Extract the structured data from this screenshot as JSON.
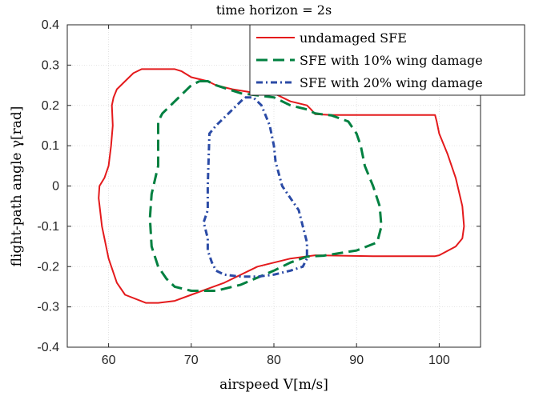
{
  "chart_data": {
    "type": "line",
    "title": "time horizon = 2s",
    "xlabel": "airspeed V[m/s]",
    "ylabel": "flight-path angle γ[rad]",
    "xlim": [
      55,
      105
    ],
    "ylim": [
      -0.4,
      0.4
    ],
    "xticks": [
      "60",
      "70",
      "80",
      "90",
      "100"
    ],
    "yticks": [
      "0.4",
      "0.3",
      "0.2",
      "0.1",
      "0",
      "-0.1",
      "-0.2",
      "-0.3",
      "-0.4"
    ],
    "grid": true,
    "legend_position": "top-right",
    "series": [
      {
        "name": "undamaged SFE",
        "color": "#e41a1c",
        "style": "solid",
        "x": [
          64.5,
          68,
          68.8,
          70,
          72,
          73,
          75,
          78,
          80,
          81,
          82,
          83,
          84,
          84.5,
          85,
          87,
          95,
          99.5,
          99.7,
          100,
          101,
          102,
          102.8,
          103,
          102.8,
          102,
          100,
          99.5,
          96,
          92,
          85,
          82,
          78,
          74,
          70,
          68,
          66,
          64.5,
          62,
          61,
          60,
          59.2,
          58.8,
          58.9,
          59.5,
          60,
          60.3,
          60.5,
          60.4,
          60.6,
          61,
          62,
          63,
          64,
          64.5
        ],
        "y": [
          0.29,
          0.29,
          0.285,
          0.27,
          0.26,
          0.25,
          0.24,
          0.23,
          0.23,
          0.22,
          0.21,
          0.205,
          0.2,
          0.19,
          0.178,
          0.176,
          0.176,
          0.176,
          0.16,
          0.13,
          0.08,
          0.02,
          -0.05,
          -0.1,
          -0.13,
          -0.15,
          -0.172,
          -0.174,
          -0.174,
          -0.174,
          -0.172,
          -0.18,
          -0.2,
          -0.24,
          -0.27,
          -0.285,
          -0.29,
          -0.29,
          -0.27,
          -0.24,
          -0.18,
          -0.1,
          -0.03,
          0.0,
          0.02,
          0.05,
          0.1,
          0.15,
          0.2,
          0.22,
          0.24,
          0.26,
          0.28,
          0.29,
          0.29
        ]
      },
      {
        "name": "SFE with 10% wing damage",
        "color": "#008040",
        "style": "dashed",
        "x": [
          71,
          72,
          73,
          76,
          80,
          82,
          84,
          85,
          87,
          89,
          90,
          90.5,
          91,
          92,
          92.8,
          93,
          92.5,
          90,
          86,
          84,
          82,
          80,
          76,
          73,
          70,
          68,
          67,
          66,
          65.2,
          65,
          65.2,
          66,
          66,
          66,
          66.5,
          68,
          70,
          71
        ],
        "y": [
          0.26,
          0.26,
          0.25,
          0.23,
          0.22,
          0.2,
          0.19,
          0.18,
          0.175,
          0.16,
          0.13,
          0.1,
          0.05,
          0.0,
          -0.05,
          -0.1,
          -0.14,
          -0.16,
          -0.173,
          -0.175,
          -0.19,
          -0.21,
          -0.245,
          -0.26,
          -0.26,
          -0.25,
          -0.23,
          -0.2,
          -0.15,
          -0.08,
          -0.02,
          0.05,
          0.1,
          0.16,
          0.18,
          0.21,
          0.25,
          0.26
        ]
      },
      {
        "name": "SFE with 20% wing damage",
        "color": "#2b4ba6",
        "style": "dashdot",
        "x": [
          76.5,
          77.5,
          78.5,
          79.5,
          80,
          80.2,
          81,
          82,
          83,
          83.5,
          84,
          84,
          83.5,
          82,
          80,
          78,
          76,
          74,
          73,
          72.5,
          72,
          72,
          71.5,
          72,
          72,
          72.2,
          73,
          74,
          75,
          76,
          76.5
        ],
        "y": [
          0.22,
          0.22,
          0.2,
          0.15,
          0.1,
          0.06,
          0.0,
          -0.03,
          -0.06,
          -0.1,
          -0.14,
          -0.18,
          -0.2,
          -0.21,
          -0.22,
          -0.225,
          -0.225,
          -0.22,
          -0.21,
          -0.19,
          -0.16,
          -0.13,
          -0.09,
          -0.06,
          0.0,
          0.13,
          0.15,
          0.17,
          0.19,
          0.21,
          0.22
        ]
      }
    ]
  }
}
